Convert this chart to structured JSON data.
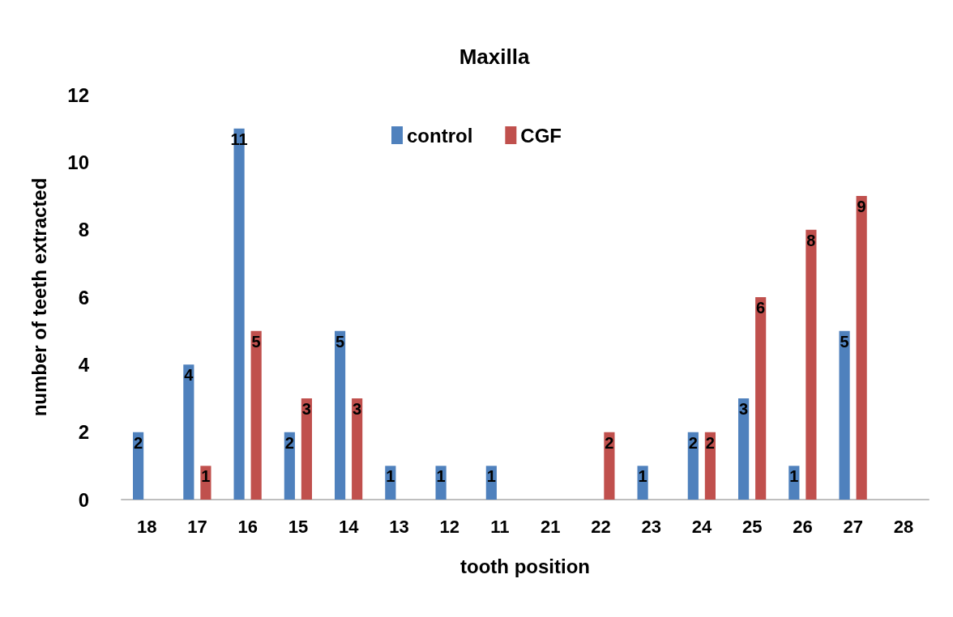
{
  "chart_data": {
    "type": "bar",
    "title": "Maxilla",
    "xlabel": "tooth position",
    "ylabel": "number of teeth extracted",
    "categories": [
      "18",
      "17",
      "16",
      "15",
      "14",
      "13",
      "12",
      "11",
      "21",
      "22",
      "23",
      "24",
      "25",
      "26",
      "27",
      "28"
    ],
    "series": [
      {
        "name": "control",
        "color": "#4f81bd",
        "values": [
          2,
          4,
          11,
          2,
          5,
          1,
          1,
          1,
          0,
          0,
          1,
          2,
          3,
          1,
          5,
          0
        ],
        "value_labels": [
          "2",
          "4",
          "11",
          "2",
          "5",
          "1",
          "1",
          "1",
          null,
          null,
          "1",
          "2",
          "3",
          "1",
          "5",
          null
        ]
      },
      {
        "name": "CGF",
        "color": "#c0504d",
        "values": [
          0,
          1,
          5,
          3,
          3,
          0,
          0,
          0,
          0,
          2,
          0,
          2,
          6,
          8,
          9,
          0
        ],
        "value_labels": [
          null,
          "1",
          "5",
          "3",
          "3",
          null,
          null,
          null,
          null,
          "2",
          null,
          "2",
          "6",
          "8",
          "9",
          null
        ]
      }
    ],
    "ylim": [
      0,
      12
    ],
    "yticks": [
      0,
      2,
      4,
      6,
      8,
      10,
      12
    ],
    "grid": false,
    "legend": "top"
  }
}
